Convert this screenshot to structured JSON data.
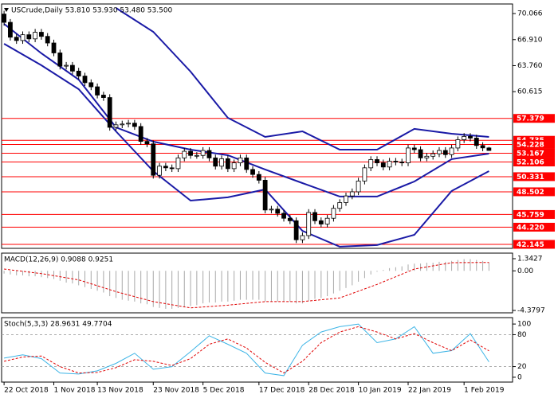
{
  "chart_data": [
    {
      "type": "candlestick",
      "title": "USCrude,Daily  53.810 53.930 53.480 53.500",
      "xlim": [
        -0.4,
        81.8
      ],
      "ylim": [
        41.66,
        71.22
      ],
      "yticks": [
        70.066,
        {
          "value": 66.91,
          "label": "66.910"
        },
        {
          "value": 63.76,
          "label": "63.760"
        },
        60.615
      ],
      "up_color": "#ffffff",
      "down_color": "#000000",
      "open": [
        70.0,
        69.0,
        67.2,
        66.8,
        67.5,
        67.0,
        67.8,
        67.3,
        66.5,
        65.3,
        63.7,
        63.8,
        63.1,
        62.5,
        61.7,
        61.2,
        60.2,
        59.9,
        56.3,
        56.6,
        56.7,
        56.8,
        56.4,
        54.6,
        54.3,
        50.5,
        51.6,
        51.4,
        51.3,
        52.6,
        53.4,
        52.9,
        52.9,
        53.5,
        52.6,
        51.6,
        52.5,
        51.3,
        52.0,
        52.6,
        51.2,
        50.6,
        49.9,
        46.3,
        46.4,
        45.9,
        45.3,
        45.0,
        42.7,
        43.2,
        46.0,
        45.0,
        44.6,
        45.3,
        46.5,
        47.2,
        48.0,
        48.5,
        49.8,
        51.4,
        52.4,
        52.0,
        51.5,
        52.2,
        52.1,
        52.0,
        53.8,
        53.6,
        52.6,
        52.8,
        53.1,
        53.5,
        53.0,
        53.8,
        54.8,
        55.2,
        55.0,
        54.1,
        53.81
      ],
      "high": [
        70.4,
        69.4,
        67.6,
        67.9,
        67.9,
        68.2,
        68.2,
        67.7,
        66.9,
        65.7,
        64.2,
        64.2,
        63.5,
        62.9,
        62.1,
        61.6,
        60.6,
        60.3,
        57.0,
        57.1,
        57.2,
        57.2,
        56.8,
        55.0,
        54.7,
        52.0,
        52.0,
        51.8,
        53.0,
        53.8,
        53.8,
        53.3,
        53.9,
        53.9,
        53.0,
        52.9,
        52.9,
        52.4,
        53.0,
        53.0,
        51.6,
        51.0,
        50.3,
        46.8,
        46.8,
        46.3,
        45.7,
        45.4,
        43.6,
        46.4,
        46.4,
        45.4,
        45.7,
        46.9,
        47.6,
        48.4,
        48.9,
        50.2,
        51.8,
        52.8,
        52.8,
        52.4,
        52.6,
        52.6,
        52.5,
        54.2,
        54.2,
        54.0,
        53.2,
        53.5,
        53.9,
        53.9,
        54.2,
        55.2,
        55.6,
        55.6,
        55.4,
        54.5,
        53.93
      ],
      "low": [
        68.6,
        66.8,
        66.4,
        66.4,
        66.6,
        66.6,
        66.9,
        66.1,
        64.9,
        63.3,
        63.3,
        62.7,
        62.1,
        61.3,
        60.8,
        59.8,
        59.5,
        55.9,
        55.9,
        56.2,
        56.3,
        56.0,
        54.2,
        53.9,
        50.1,
        50.1,
        51.0,
        50.9,
        50.9,
        52.2,
        52.5,
        52.5,
        52.5,
        52.2,
        51.2,
        51.2,
        50.9,
        50.9,
        51.6,
        50.8,
        50.2,
        49.5,
        45.9,
        45.9,
        45.5,
        44.9,
        44.6,
        42.3,
        42.3,
        42.8,
        44.6,
        44.2,
        44.2,
        44.9,
        46.1,
        46.8,
        47.6,
        48.1,
        49.4,
        51.0,
        51.6,
        51.1,
        51.1,
        51.7,
        51.6,
        51.6,
        53.2,
        52.2,
        52.2,
        52.4,
        52.7,
        52.6,
        52.6,
        53.4,
        54.4,
        54.6,
        53.7,
        53.41,
        53.48
      ],
      "close": [
        69.0,
        67.2,
        66.8,
        67.5,
        67.0,
        67.8,
        67.3,
        66.5,
        65.3,
        63.7,
        63.8,
        63.1,
        62.5,
        61.7,
        61.2,
        60.2,
        59.9,
        56.3,
        56.6,
        56.7,
        56.8,
        56.4,
        54.6,
        54.3,
        50.5,
        51.6,
        51.4,
        51.3,
        52.6,
        53.4,
        52.9,
        52.9,
        53.5,
        52.6,
        51.6,
        52.5,
        51.3,
        52.0,
        52.6,
        51.2,
        50.6,
        49.9,
        46.3,
        46.4,
        45.9,
        45.3,
        45.0,
        42.7,
        43.2,
        46.0,
        45.0,
        44.6,
        45.3,
        46.5,
        47.2,
        48.0,
        48.5,
        49.8,
        51.4,
        52.4,
        52.0,
        51.5,
        52.2,
        52.1,
        52.0,
        53.8,
        53.6,
        52.6,
        52.8,
        53.1,
        53.5,
        53.0,
        53.8,
        54.8,
        55.2,
        55.0,
        54.1,
        53.81,
        53.5
      ],
      "bands": {
        "color": "#1a1aa6",
        "x": [
          0,
          6,
          12,
          18,
          24,
          30,
          36,
          42,
          48,
          54,
          60,
          66,
          72,
          78
        ],
        "upper": [
          null,
          null,
          null,
          70.74,
          67.85,
          63.04,
          57.45,
          55.14,
          55.81,
          53.6,
          53.6,
          56.11,
          55.53,
          55.14
        ],
        "middle": [
          68.81,
          65.25,
          62.07,
          56.3,
          54.57,
          53.6,
          52.93,
          51.2,
          49.56,
          47.93,
          47.93,
          49.75,
          52.45,
          53.12
        ],
        "lower": [
          66.41,
          63.81,
          60.92,
          55.81,
          51.0,
          47.44,
          47.83,
          48.79,
          43.78,
          41.86,
          42.05,
          43.3,
          48.6,
          51.0
        ]
      },
      "level_color": "#ff0000",
      "levels": [
        57.379,
        54.735,
        54.228,
        53.167,
        52.106,
        50.331,
        48.502,
        45.759,
        {
          "value": 44.22,
          "label": "44.220"
        },
        42.145
      ]
    },
    {
      "type": "macd",
      "title": "MACD(12,26,9) 0.9088 0.9251",
      "xlim": [
        -0.4,
        81.8
      ],
      "ylim": [
        -4.644,
        1.959
      ],
      "yticks": [
        1.3427,
        {
          "value": 0,
          "label": "0.00"
        },
        -4.3797
      ],
      "color": "#a8a8a8",
      "values": [
        -0.3,
        -0.4,
        -0.5,
        -0.5,
        -0.6,
        -0.6,
        -0.7,
        -0.8,
        -0.9,
        -1.1,
        -1.3,
        -1.4,
        -1.6,
        -1.8,
        -2.0,
        -2.2,
        -2.4,
        -2.8,
        -3.0,
        -3.2,
        -3.3,
        -3.4,
        -3.6,
        -3.7,
        -4.0,
        -4.1,
        -4.2,
        -4.2,
        -4.1,
        -4.0,
        -3.9,
        -3.8,
        -3.6,
        -3.5,
        -3.5,
        -3.4,
        -3.4,
        -3.3,
        -3.2,
        -3.2,
        -3.2,
        -3.2,
        -3.4,
        -3.4,
        -3.4,
        -3.4,
        -3.4,
        -3.6,
        -3.6,
        -3.3,
        -3.1,
        -3.0,
        -2.8,
        -2.5,
        -2.2,
        -1.9,
        -1.6,
        -1.2,
        -0.8,
        -0.4,
        -0.1,
        0.1,
        0.3,
        0.4,
        0.5,
        0.7,
        0.8,
        0.8,
        0.9,
        0.9,
        1.0,
        1.0,
        1.1,
        1.2,
        1.3,
        1.3,
        1.2,
        1.1,
        0.9088
      ],
      "signal": {
        "color": "#e00000",
        "x": [
          0,
          6,
          12,
          18,
          24,
          30,
          36,
          42,
          48,
          54,
          60,
          66,
          72,
          78
        ],
        "values": [
          0.2,
          -0.3,
          -1.0,
          -2.3,
          -3.4,
          -4.1,
          -3.8,
          -3.4,
          -3.4,
          -3.0,
          -1.5,
          0.2,
          0.9,
          0.9251
        ]
      }
    },
    {
      "type": "stochastic",
      "title": "Stoch(5,3,3) 28.9631 49.7704",
      "xlim": [
        -0.4,
        81.8
      ],
      "ylim": [
        -9.1,
        112.1
      ],
      "yticks": [
        100,
        80,
        20,
        0
      ],
      "levels": [
        20,
        80
      ],
      "xticks": [
        {
          "value": 0,
          "label": "22 Oct 2018"
        },
        {
          "value": 8,
          "label": "1 Nov 2018"
        },
        {
          "value": 15,
          "label": "13 Nov 2018"
        },
        {
          "value": 24,
          "label": "23 Nov 2018"
        },
        {
          "value": 32,
          "label": "5 Dec 2018"
        },
        {
          "value": 41,
          "label": "17 Dec 2018"
        },
        {
          "value": 49,
          "label": "28 Dec 2018"
        },
        {
          "value": 57,
          "label": "10 Jan 2019"
        },
        {
          "value": 65,
          "label": "22 Jan 2019"
        },
        {
          "value": 74,
          "label": "1 Feb 2019"
        }
      ],
      "x": [
        0,
        3,
        6,
        9,
        12,
        15,
        18,
        21,
        24,
        27,
        30,
        33,
        36,
        39,
        42,
        45,
        48,
        51,
        54,
        57,
        60,
        63,
        66,
        69,
        72,
        75,
        78
      ],
      "series": [
        {
          "color": "#3cb4e6",
          "values": [
            36,
            42,
            35,
            8,
            6,
            12,
            26,
            45,
            15,
            20,
            48,
            78,
            62,
            45,
            8,
            3,
            60,
            85,
            95,
            100,
            65,
            72,
            95,
            45,
            50,
            82,
            28.9631
          ]
        },
        {
          "color": "#e00000",
          "dash": true,
          "values": [
            30,
            38,
            40,
            20,
            8,
            9,
            18,
            33,
            30,
            22,
            35,
            62,
            72,
            55,
            28,
            8,
            30,
            65,
            85,
            95,
            85,
            72,
            82,
            65,
            50,
            70,
            49.7704
          ]
        }
      ]
    }
  ]
}
